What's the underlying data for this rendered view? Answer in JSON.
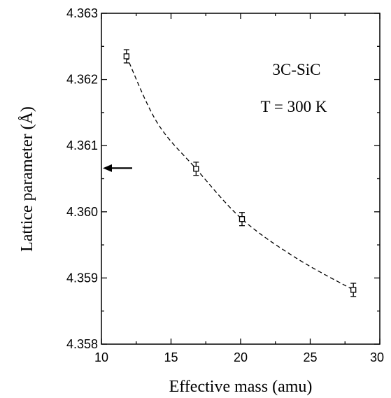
{
  "chart_data": {
    "type": "scatter",
    "title": "",
    "xlabel": "Effective mass (amu)",
    "ylabel": "Lattice parameter (Å)",
    "xlim": [
      10,
      30
    ],
    "ylim": [
      4.358,
      4.363
    ],
    "x_ticks": [
      "10",
      "15",
      "20",
      "25",
      "30"
    ],
    "y_ticks": [
      "4.358",
      "4.359",
      "4.360",
      "4.361",
      "4.362",
      "4.363"
    ],
    "grid": false,
    "series": [
      {
        "marker": "open-square",
        "points": [
          {
            "x": 11.8,
            "y": 4.36235,
            "err": 0.0001
          },
          {
            "x": 16.8,
            "y": 4.36065,
            "err": 0.0001
          },
          {
            "x": 20.1,
            "y": 4.35989,
            "err": 0.0001
          },
          {
            "x": 28.1,
            "y": 4.35882,
            "err": 0.0001
          }
        ]
      }
    ],
    "fit": {
      "style": "dashed",
      "points": [
        {
          "x": 11.8,
          "y": 4.36235
        },
        {
          "x": 14.0,
          "y": 4.36135
        },
        {
          "x": 16.8,
          "y": 4.36065
        },
        {
          "x": 20.1,
          "y": 4.35989
        },
        {
          "x": 24.0,
          "y": 4.3593
        },
        {
          "x": 28.1,
          "y": 4.35882
        }
      ]
    },
    "annotations": [
      "3C-SiC",
      "T = 300 K"
    ],
    "arrow": {
      "y": 4.36066,
      "direction": "left"
    }
  }
}
